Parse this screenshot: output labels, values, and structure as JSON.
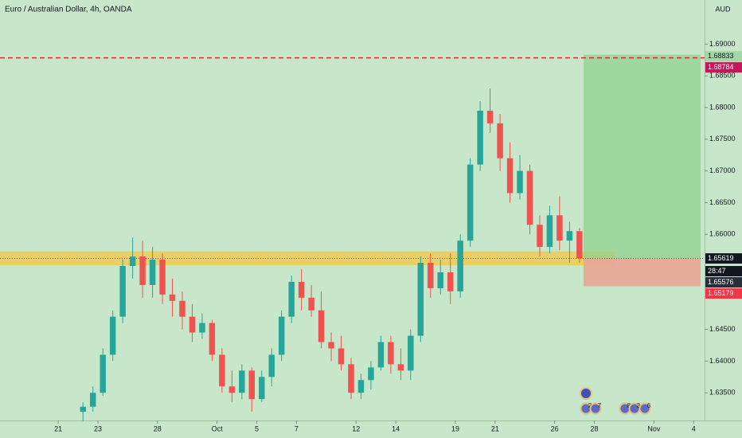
{
  "chart_data": {
    "type": "candlestick",
    "title": "Euro / Australian Dollar, 4h, OANDA",
    "currency": "AUD",
    "x": [
      1.25,
      1.75,
      2.25,
      2.75,
      3.25,
      3.75,
      4.25,
      4.75,
      5.25,
      5.75,
      6.25,
      6.75,
      7.25,
      7.75,
      8.25,
      8.75,
      9.25,
      9.75,
      10.25,
      10.75,
      11.25,
      11.75,
      12.25,
      12.75,
      13.25,
      13.75,
      14.25,
      14.75,
      15.25,
      15.75,
      16.25,
      16.75,
      17.25,
      17.75,
      18.25,
      18.75,
      19.25,
      19.75,
      20.25,
      20.75,
      21.25,
      21.75,
      22.25,
      22.75,
      23.25,
      23.75,
      24.25,
      24.75,
      25.25,
      25.75,
      26.25
    ],
    "open": [
      1.632,
      1.6328,
      1.635,
      1.641,
      1.647,
      1.655,
      1.6565,
      1.652,
      1.656,
      1.6505,
      1.6495,
      1.647,
      1.6445,
      1.646,
      1.641,
      1.636,
      1.635,
      1.6385,
      1.634,
      1.6375,
      1.641,
      1.647,
      1.6525,
      1.65,
      1.648,
      1.643,
      1.642,
      1.6395,
      1.635,
      1.637,
      1.639,
      1.643,
      1.6395,
      1.6385,
      1.644,
      1.6555,
      1.6515,
      1.654,
      1.651,
      1.659,
      1.671,
      1.6795,
      1.6775,
      1.672,
      1.6665,
      1.67,
      1.6615,
      1.658,
      1.663,
      1.659,
      1.6605
    ],
    "high": [
      1.6335,
      1.636,
      1.642,
      1.648,
      1.656,
      1.6595,
      1.659,
      1.658,
      1.657,
      1.653,
      1.651,
      1.649,
      1.6475,
      1.6465,
      1.642,
      1.6385,
      1.6395,
      1.639,
      1.6385,
      1.642,
      1.648,
      1.6535,
      1.6545,
      1.652,
      1.651,
      1.6445,
      1.644,
      1.6405,
      1.638,
      1.64,
      1.644,
      1.644,
      1.642,
      1.645,
      1.6565,
      1.657,
      1.656,
      1.657,
      1.66,
      1.672,
      1.681,
      1.683,
      1.679,
      1.6745,
      1.6725,
      1.671,
      1.663,
      1.6645,
      1.666,
      1.662,
      1.661
    ],
    "low": [
      1.6305,
      1.632,
      1.6345,
      1.64,
      1.646,
      1.653,
      1.65,
      1.65,
      1.649,
      1.647,
      1.645,
      1.643,
      1.6435,
      1.64,
      1.635,
      1.6335,
      1.634,
      1.632,
      1.6335,
      1.636,
      1.64,
      1.646,
      1.648,
      1.647,
      1.642,
      1.64,
      1.6385,
      1.634,
      1.634,
      1.6355,
      1.6385,
      1.638,
      1.637,
      1.637,
      1.643,
      1.65,
      1.6505,
      1.649,
      1.65,
      1.658,
      1.67,
      1.676,
      1.67,
      1.665,
      1.6655,
      1.66,
      1.6565,
      1.657,
      1.6575,
      1.6555,
      1.6555
    ],
    "close": [
      1.6328,
      1.635,
      1.641,
      1.647,
      1.655,
      1.6565,
      1.652,
      1.656,
      1.6505,
      1.6495,
      1.647,
      1.6445,
      1.646,
      1.641,
      1.636,
      1.635,
      1.6385,
      1.634,
      1.6375,
      1.641,
      1.647,
      1.6525,
      1.65,
      1.648,
      1.643,
      1.642,
      1.6395,
      1.635,
      1.637,
      1.639,
      1.643,
      1.6395,
      1.6385,
      1.644,
      1.6555,
      1.6515,
      1.654,
      1.651,
      1.659,
      1.671,
      1.6795,
      1.6775,
      1.672,
      1.6665,
      1.67,
      1.6615,
      1.658,
      1.663,
      1.659,
      1.6605,
      1.6562
    ],
    "up_color": "#26a69a",
    "down_color": "#ef5350",
    "xlim": [
      -2.93,
      32.55
    ],
    "xticks": [
      {
        "value": 0,
        "label": "21"
      },
      {
        "value": 2,
        "label": "23"
      },
      {
        "value": 5,
        "label": "28"
      },
      {
        "value": 8,
        "label": "Oct"
      },
      {
        "value": 10,
        "label": "5"
      },
      {
        "value": 12,
        "label": "7"
      },
      {
        "value": 15,
        "label": "12"
      },
      {
        "value": 17,
        "label": "14"
      },
      {
        "value": 20,
        "label": "19"
      },
      {
        "value": 22,
        "label": "21"
      },
      {
        "value": 25,
        "label": "26"
      },
      {
        "value": 27,
        "label": "28"
      },
      {
        "value": 30,
        "label": "Nov"
      },
      {
        "value": 32,
        "label": "4"
      }
    ],
    "ylim": [
      1.63063,
      1.69696
    ],
    "yticks": [
      {
        "value": 1.635,
        "label": "1.63500"
      },
      {
        "value": 1.64,
        "label": "1.64000"
      },
      {
        "value": 1.645,
        "label": "1.64500"
      },
      {
        "value": 1.66,
        "label": "1.66000"
      },
      {
        "value": 1.665,
        "label": "1.66500"
      },
      {
        "value": 1.67,
        "label": "1.67000"
      },
      {
        "value": 1.675,
        "label": "1.67500"
      },
      {
        "value": 1.68,
        "label": "1.68000"
      },
      {
        "value": 1.685,
        "label": "1.68500"
      },
      {
        "value": 1.69,
        "label": "1.69000"
      }
    ],
    "zone": {
      "low": 1.6551,
      "high": 1.6573,
      "color": "#f5c842"
    },
    "position": {
      "entry": 1.65619,
      "target": 1.68833,
      "stop": 1.65179
    },
    "alert_line": 1.68784,
    "last_price": 1.65576,
    "countdown": "28:47",
    "events": [
      "2",
      "7",
      "8",
      "3",
      "6"
    ]
  }
}
